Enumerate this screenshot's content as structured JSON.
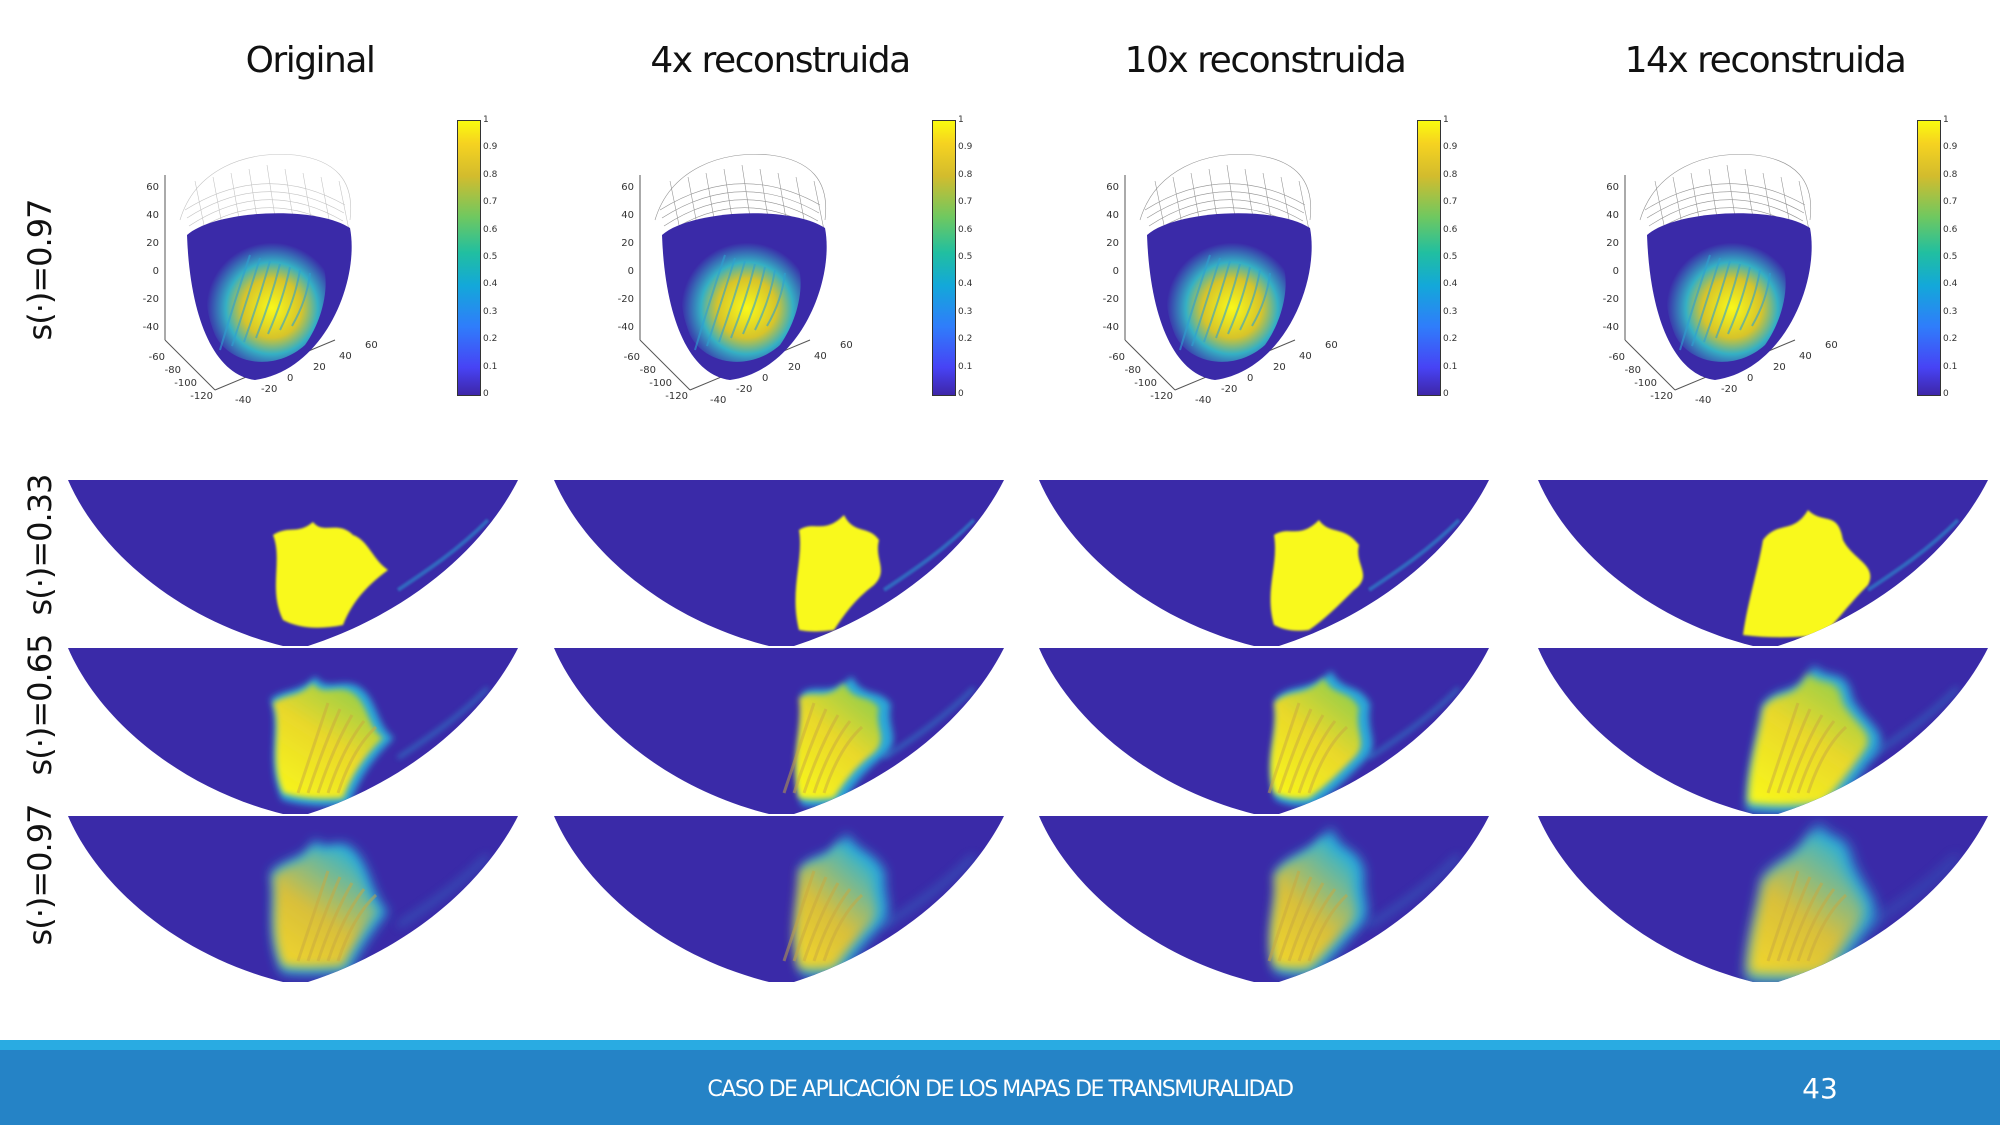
{
  "columns": [
    "Original",
    "4x reconstruida",
    "10x reconstruida",
    "14x reconstruida"
  ],
  "rows": {
    "top_label": "s(·)=0.97",
    "map_labels": [
      "s(·)=0.33",
      "s(·)=0.65",
      "s(·)=0.97"
    ]
  },
  "heart_axes": {
    "z_ticks": [
      "60",
      "40",
      "20",
      "0",
      "-20",
      "-40"
    ],
    "x_ticks": [
      "-60",
      "-80",
      "-100",
      "-120"
    ],
    "y_ticks": [
      "-40",
      "-20",
      "0",
      "20",
      "40",
      "60"
    ]
  },
  "colorbar": {
    "ticks": [
      "1",
      "0.9",
      "0.8",
      "0.7",
      "0.6",
      "0.5",
      "0.4",
      "0.3",
      "0.2",
      "0.1",
      "0"
    ]
  },
  "colors": {
    "background_blue": "#3a2aa8",
    "yellow": "#f9f91a",
    "footer": "#2583c6",
    "footer_stripe": "#29abe2"
  },
  "footer": {
    "title": "CASO DE APLICACIÓN DE LOS MAPAS DE TRANSMURALIDAD",
    "page_number": "43"
  }
}
